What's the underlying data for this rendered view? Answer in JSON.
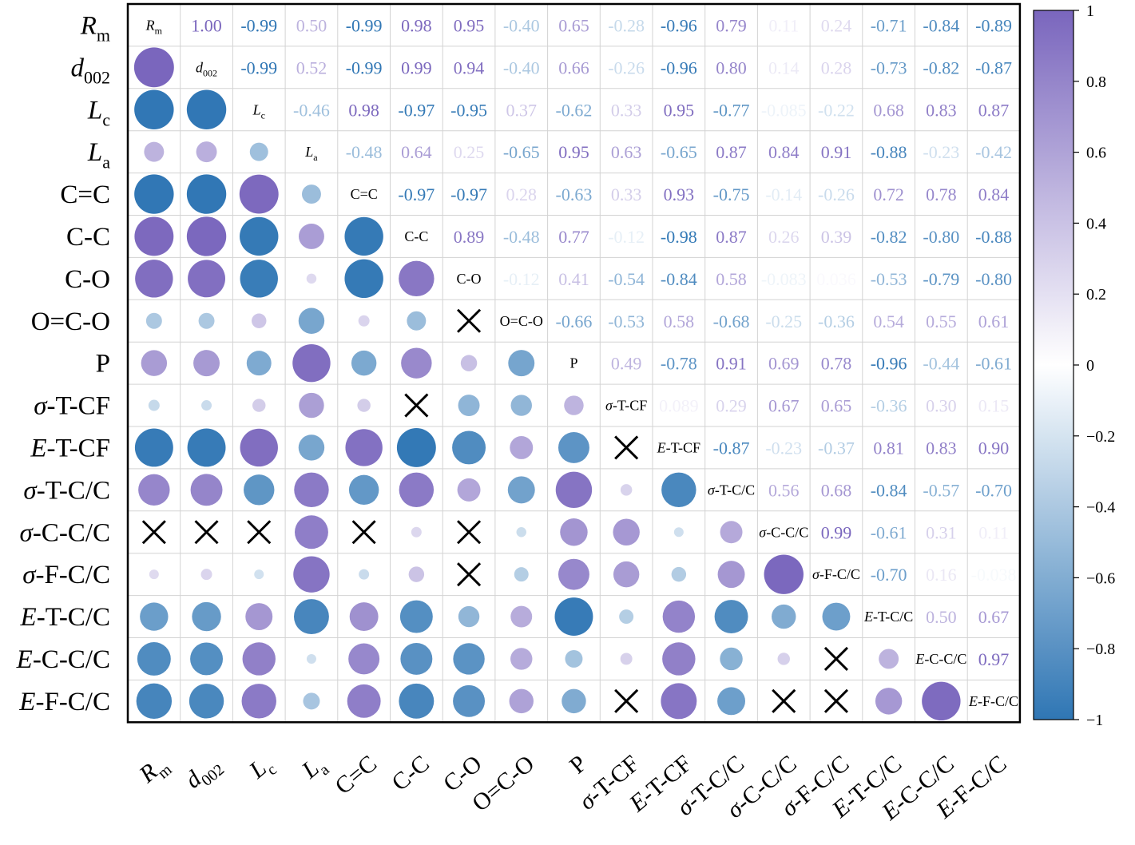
{
  "chart_data": {
    "type": "heatmap",
    "title": "",
    "xlabel": "",
    "ylabel": "",
    "variables": [
      {
        "base": "R",
        "sub": "m",
        "italic": true
      },
      {
        "base": "d",
        "sub": "002",
        "italic": true
      },
      {
        "base": "L",
        "sub": "c",
        "italic": true
      },
      {
        "base": "L",
        "sub": "a",
        "italic": true
      },
      {
        "base": "C=C",
        "sub": "",
        "italic": false
      },
      {
        "base": "C-C",
        "sub": "",
        "italic": false
      },
      {
        "base": "C-O",
        "sub": "",
        "italic": false
      },
      {
        "base": "O=C-O",
        "sub": "",
        "italic": false
      },
      {
        "base": "P",
        "sub": "",
        "italic": false
      },
      {
        "base": "σ",
        "rest": "-T-CF",
        "italic": true
      },
      {
        "base": "E",
        "rest": "-T-CF",
        "italic": true
      },
      {
        "base": "σ",
        "rest": "-T-C/C",
        "italic": true
      },
      {
        "base": "σ",
        "rest": "-C-C/C",
        "italic": true
      },
      {
        "base": "σ",
        "rest": "-F-C/C",
        "italic": true
      },
      {
        "base": "E",
        "rest": "-T-C/C",
        "italic": true
      },
      {
        "base": "E",
        "rest": "-C-C/C",
        "italic": true
      },
      {
        "base": "E",
        "rest": "-F-C/C",
        "italic": true
      }
    ],
    "upper_triangle": [
      [
        "1.00",
        "-0.99",
        "0.50",
        "-0.99",
        "0.98",
        "0.95",
        "-0.40",
        "0.65",
        "-0.28",
        "-0.96",
        "0.79",
        "0.11",
        "0.24",
        "-0.71",
        "-0.84",
        "-0.89"
      ],
      [
        "-0.99",
        "0.52",
        "-0.99",
        "0.99",
        "0.94",
        "-0.40",
        "0.66",
        "-0.26",
        "-0.96",
        "0.80",
        "0.14",
        "0.28",
        "-0.73",
        "-0.82",
        "-0.87"
      ],
      [
        "-0.46",
        "0.98",
        "-0.97",
        "-0.95",
        "0.37",
        "-0.62",
        "0.33",
        "0.95",
        "-0.77",
        "-0.085",
        "-0.22",
        "0.68",
        "0.83",
        "0.87"
      ],
      [
        "-0.48",
        "0.64",
        "0.25",
        "-0.65",
        "0.95",
        "0.63",
        "-0.65",
        "0.87",
        "0.84",
        "0.91",
        "-0.88",
        "-0.23",
        "-0.42"
      ],
      [
        "-0.97",
        "-0.97",
        "0.28",
        "-0.63",
        "0.33",
        "0.93",
        "-0.75",
        "-0.14",
        "-0.26",
        "0.72",
        "0.78",
        "0.84"
      ],
      [
        "0.89",
        "-0.48",
        "0.77",
        "-0.12",
        "-0.98",
        "0.87",
        "0.26",
        "0.39",
        "-0.82",
        "-0.80",
        "-0.88"
      ],
      [
        "-0.12",
        "0.41",
        "-0.54",
        "-0.84",
        "0.58",
        "-0.083",
        "0.036",
        "-0.53",
        "-0.79",
        "-0.80"
      ],
      [
        "-0.66",
        "-0.53",
        "0.58",
        "-0.68",
        "-0.25",
        "-0.36",
        "0.54",
        "0.55",
        "0.61"
      ],
      [
        "0.49",
        "-0.78",
        "0.91",
        "0.69",
        "0.78",
        "-0.96",
        "-0.44",
        "-0.61"
      ],
      [
        "0.089",
        "0.29",
        "0.67",
        "0.65",
        "-0.36",
        "0.30",
        "0.15"
      ],
      [
        "-0.87",
        "-0.23",
        "-0.37",
        "0.81",
        "0.83",
        "0.90"
      ],
      [
        "0.56",
        "0.68",
        "-0.84",
        "-0.57",
        "-0.70"
      ],
      [
        "0.99",
        "-0.61",
        "0.31",
        "0.11"
      ],
      [
        "-0.70",
        "0.16",
        "-0.038"
      ],
      [
        "0.50",
        "0.67"
      ],
      [
        "0.97"
      ],
      []
    ],
    "lower_triangle_insignificant_marker": "X",
    "colorbar": {
      "range": [
        -1,
        1
      ],
      "ticks": [
        "1",
        "0.8",
        "0.6",
        "0.4",
        "0.2",
        "0",
        "-0.2",
        "-0.4",
        "-0.6",
        "-0.8",
        "-1"
      ],
      "color_negative": "#2f76b4",
      "color_zero": "#ffffff",
      "color_positive": "#7a66bd"
    },
    "not_significant": [
      [
        7,
        6
      ],
      [
        9,
        5
      ],
      [
        10,
        9
      ],
      [
        12,
        0
      ],
      [
        12,
        1
      ],
      [
        12,
        2
      ],
      [
        12,
        4
      ],
      [
        12,
        6
      ],
      [
        13,
        6
      ],
      [
        15,
        13
      ],
      [
        16,
        9
      ],
      [
        16,
        12
      ],
      [
        16,
        13
      ]
    ]
  }
}
